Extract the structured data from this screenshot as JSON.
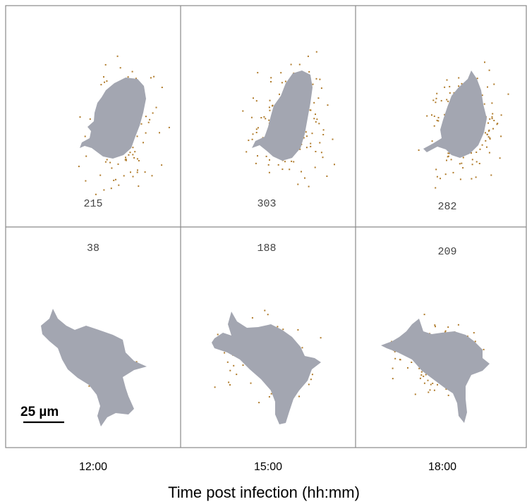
{
  "x_axis_title": "Time post infection (hh:mm)",
  "time_points": [
    "12:00",
    "15:00",
    "18:00"
  ],
  "scale_bar_label": "25 µm",
  "colors": {
    "cell": "#a3a6b1",
    "particle": "#b07c2c",
    "grid": "#8a8a8a"
  },
  "panels": [
    {
      "row": 0,
      "col": 0,
      "count": "215"
    },
    {
      "row": 0,
      "col": 1,
      "count": "303"
    },
    {
      "row": 0,
      "col": 2,
      "count": "282"
    },
    {
      "row": 1,
      "col": 0,
      "count": "38"
    },
    {
      "row": 1,
      "col": 1,
      "count": "188"
    },
    {
      "row": 1,
      "col": 2,
      "count": "209"
    }
  ]
}
